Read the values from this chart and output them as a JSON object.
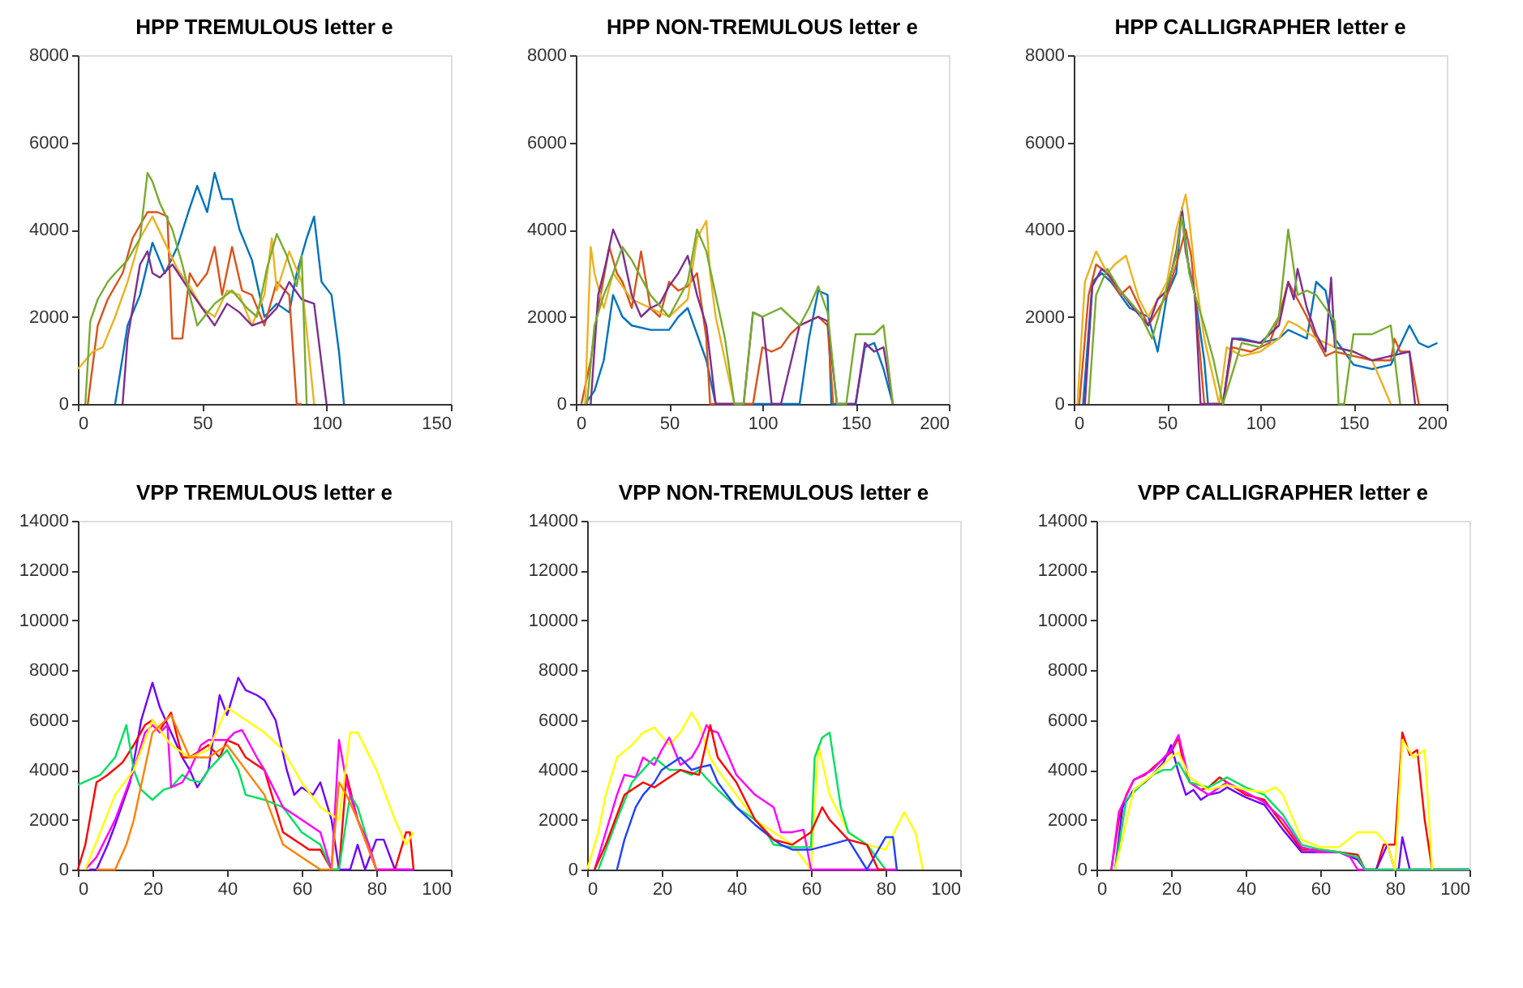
{
  "chart_data": [
    {
      "type": "line",
      "title": "HPP TREMULOUS letter e",
      "xlim": [
        0,
        150
      ],
      "xticks": [
        0,
        50,
        100,
        150
      ],
      "ylim": [
        0,
        8000
      ],
      "yticks": [
        0,
        2000,
        4000,
        6000,
        8000
      ],
      "grid": false,
      "legend": false,
      "line_style": "solid",
      "marker": "none",
      "series": [
        {
          "color": "#0072bd",
          "x": [
            15,
            20,
            25,
            30,
            35,
            40,
            45,
            48,
            52,
            55,
            58,
            62,
            65,
            70,
            75,
            80,
            85,
            88,
            92,
            95,
            98,
            102,
            105,
            107
          ],
          "values": [
            0,
            1800,
            2500,
            3700,
            3000,
            3600,
            4500,
            5000,
            4400,
            5300,
            4700,
            4700,
            4000,
            3300,
            2000,
            2300,
            2100,
            3000,
            3800,
            4300,
            2800,
            2500,
            1200,
            0
          ]
        },
        {
          "color": "#d95319",
          "x": [
            4,
            8,
            12,
            18,
            22,
            28,
            32,
            36,
            38,
            42,
            45,
            48,
            52,
            55,
            58,
            62,
            66,
            70,
            75,
            80,
            85,
            88,
            90
          ],
          "values": [
            0,
            1800,
            2400,
            3000,
            3800,
            4400,
            4400,
            4300,
            1500,
            1500,
            3000,
            2700,
            3000,
            3600,
            2500,
            3600,
            2600,
            2500,
            1800,
            2800,
            2500,
            0,
            0
          ]
        },
        {
          "color": "#edb120",
          "x": [
            0,
            3,
            6,
            10,
            15,
            20,
            25,
            30,
            35,
            40,
            45,
            50,
            55,
            60,
            65,
            70,
            75,
            78,
            80,
            85,
            90,
            95
          ],
          "values": [
            800,
            1000,
            1200,
            1300,
            2000,
            2800,
            3800,
            4300,
            3700,
            3100,
            2700,
            2200,
            2000,
            2600,
            2500,
            1800,
            2500,
            3800,
            2600,
            3500,
            2800,
            0
          ]
        },
        {
          "color": "#7e2f8e",
          "x": [
            18,
            20,
            25,
            28,
            30,
            33,
            38,
            45,
            50,
            55,
            60,
            65,
            70,
            75,
            80,
            85,
            90,
            95,
            100
          ],
          "values": [
            0,
            1500,
            3200,
            3500,
            3000,
            2900,
            3200,
            2600,
            2200,
            1800,
            2300,
            2100,
            1800,
            1900,
            2200,
            2800,
            2400,
            2300,
            0
          ]
        },
        {
          "color": "#77ac30",
          "x": [
            3,
            5,
            8,
            12,
            15,
            20,
            25,
            28,
            30,
            33,
            38,
            42,
            48,
            55,
            62,
            68,
            72,
            76,
            80,
            84,
            88,
            90,
            92
          ],
          "values": [
            0,
            1900,
            2400,
            2800,
            3000,
            3300,
            3800,
            5300,
            5100,
            4600,
            4000,
            3200,
            1800,
            2300,
            2600,
            2200,
            2000,
            3100,
            3900,
            3400,
            2700,
            3400,
            0
          ]
        }
      ]
    },
    {
      "type": "line",
      "title": "HPP NON-TREMULOUS letter e",
      "xlim": [
        0,
        200
      ],
      "xticks": [
        0,
        50,
        100,
        150,
        200
      ],
      "ylim": [
        0,
        8000
      ],
      "yticks": [
        0,
        2000,
        4000,
        6000,
        8000
      ],
      "grid": false,
      "legend": false,
      "line_style": "solid",
      "marker": "none",
      "series": [
        {
          "color": "#0072bd",
          "x": [
            5,
            10,
            15,
            20,
            25,
            30,
            40,
            50,
            55,
            60,
            70,
            75,
            120,
            125,
            130,
            135,
            137,
            150,
            155,
            160,
            165,
            170
          ],
          "values": [
            0,
            300,
            1000,
            2500,
            2000,
            1800,
            1700,
            1700,
            2000,
            2200,
            1000,
            0,
            0,
            1500,
            2600,
            2500,
            0,
            0,
            1300,
            1400,
            800,
            0
          ]
        },
        {
          "color": "#d95319",
          "x": [
            3,
            8,
            12,
            18,
            22,
            25,
            30,
            35,
            40,
            45,
            50,
            55,
            60,
            65,
            70,
            72,
            95,
            100,
            105,
            110,
            115,
            120,
            125,
            130,
            135,
            138
          ],
          "values": [
            0,
            1000,
            2200,
            3600,
            3000,
            2800,
            2200,
            3500,
            2200,
            2000,
            2800,
            2600,
            2700,
            3000,
            1500,
            0,
            0,
            1300,
            1200,
            1300,
            1600,
            1800,
            1900,
            2000,
            1800,
            0
          ]
        },
        {
          "color": "#edb120",
          "x": [
            5,
            8,
            10,
            15,
            20,
            25,
            30,
            40,
            50,
            60,
            65,
            70,
            72,
            75,
            80,
            85
          ],
          "values": [
            0,
            3600,
            3000,
            2200,
            3000,
            2700,
            2400,
            2200,
            2000,
            2400,
            3800,
            4200,
            3000,
            2000,
            1000,
            0
          ]
        },
        {
          "color": "#7e2f8e",
          "x": [
            8,
            12,
            16,
            20,
            25,
            30,
            35,
            40,
            45,
            50,
            55,
            60,
            65,
            70,
            75,
            90,
            95,
            100,
            105,
            110,
            120,
            130,
            135,
            140,
            150,
            155,
            160,
            165,
            170
          ],
          "values": [
            0,
            2500,
            3200,
            4000,
            3500,
            2500,
            2000,
            2200,
            2300,
            2700,
            3000,
            3400,
            2500,
            1800,
            0,
            0,
            2100,
            2000,
            0,
            0,
            1800,
            2000,
            1900,
            0,
            0,
            1400,
            1200,
            1300,
            0
          ]
        },
        {
          "color": "#77ac30",
          "x": [
            6,
            10,
            15,
            20,
            25,
            30,
            40,
            50,
            60,
            65,
            70,
            75,
            80,
            85,
            90,
            95,
            100,
            110,
            120,
            125,
            130,
            135,
            140,
            145,
            150,
            160,
            165,
            170
          ],
          "values": [
            0,
            1800,
            2500,
            3000,
            3600,
            3300,
            2500,
            2000,
            2800,
            4000,
            3500,
            2500,
            1500,
            0,
            0,
            2100,
            2000,
            2200,
            1800,
            2200,
            2700,
            2100,
            0,
            0,
            1600,
            1600,
            1800,
            0
          ]
        }
      ]
    },
    {
      "type": "line",
      "title": "HPP CALLIGRAPHER letter e",
      "xlim": [
        0,
        200
      ],
      "xticks": [
        0,
        50,
        100,
        150,
        200
      ],
      "ylim": [
        0,
        8000
      ],
      "yticks": [
        0,
        2000,
        4000,
        6000,
        8000
      ],
      "grid": false,
      "legend": false,
      "line_style": "solid",
      "marker": "none",
      "series": [
        {
          "color": "#0072bd",
          "x": [
            5,
            10,
            15,
            20,
            30,
            40,
            45,
            50,
            55,
            58,
            62,
            65,
            70,
            72,
            80,
            85,
            90,
            100,
            110,
            115,
            120,
            125,
            130,
            135,
            140,
            150,
            160,
            170,
            180,
            185,
            190,
            195
          ],
          "values": [
            0,
            2800,
            3000,
            2800,
            2200,
            2000,
            1200,
            2500,
            3000,
            4500,
            3000,
            2500,
            1000,
            0,
            0,
            1500,
            1500,
            1400,
            1500,
            1700,
            1600,
            1500,
            2800,
            2600,
            1500,
            900,
            800,
            900,
            1800,
            1400,
            1300,
            1400
          ]
        },
        {
          "color": "#d95319",
          "x": [
            3,
            8,
            12,
            18,
            25,
            30,
            40,
            50,
            55,
            60,
            63,
            68,
            70,
            80,
            85,
            95,
            105,
            110,
            115,
            120,
            125,
            130,
            135,
            140,
            150,
            160,
            170,
            172,
            175,
            180,
            185
          ],
          "values": [
            0,
            2500,
            3200,
            3000,
            2500,
            2700,
            1800,
            2500,
            3200,
            4000,
            3400,
            1000,
            0,
            0,
            1300,
            1200,
            1400,
            2000,
            2800,
            2400,
            2000,
            1500,
            1100,
            1200,
            1100,
            1000,
            1000,
            1500,
            1200,
            1200,
            0
          ]
        },
        {
          "color": "#edb120",
          "x": [
            2,
            6,
            12,
            18,
            22,
            28,
            35,
            40,
            50,
            55,
            60,
            62,
            65,
            70,
            78,
            82,
            90,
            100,
            110,
            115,
            120,
            130,
            140,
            150,
            160,
            170
          ],
          "values": [
            0,
            2800,
            3500,
            3000,
            3200,
            3400,
            2400,
            2000,
            2800,
            4000,
            4800,
            4200,
            3000,
            1500,
            0,
            1300,
            1100,
            1200,
            1500,
            1900,
            1800,
            1500,
            1300,
            1200,
            1000,
            0
          ]
        },
        {
          "color": "#7e2f8e",
          "x": [
            6,
            10,
            15,
            20,
            30,
            40,
            45,
            50,
            55,
            58,
            60,
            65,
            68,
            80,
            85,
            100,
            110,
            115,
            118,
            120,
            125,
            130,
            135,
            138,
            140,
            150,
            160,
            170,
            180,
            183
          ],
          "values": [
            0,
            2700,
            3100,
            2900,
            2300,
            1800,
            2400,
            2600,
            3500,
            4400,
            3500,
            2500,
            0,
            0,
            1500,
            1400,
            1800,
            2800,
            2400,
            3100,
            2200,
            1600,
            1200,
            2900,
            1300,
            1200,
            1000,
            1100,
            1200,
            0
          ]
        },
        {
          "color": "#77ac30",
          "x": [
            8,
            12,
            18,
            25,
            35,
            42,
            50,
            55,
            58,
            62,
            65,
            70,
            75,
            80,
            90,
            100,
            110,
            115,
            120,
            125,
            130,
            140,
            142,
            145,
            150,
            160,
            170,
            175
          ],
          "values": [
            0,
            2500,
            3100,
            2600,
            2100,
            1500,
            2700,
            3400,
            4300,
            3000,
            2500,
            1800,
            1000,
            0,
            1400,
            1300,
            2000,
            4000,
            2500,
            2600,
            2500,
            1900,
            0,
            0,
            1600,
            1600,
            1800,
            0
          ]
        }
      ]
    },
    {
      "type": "line",
      "title": "VPP TREMULOUS letter e",
      "xlim": [
        0,
        100
      ],
      "xticks": [
        0,
        20,
        40,
        60,
        80,
        100
      ],
      "ylim": [
        0,
        14000
      ],
      "yticks": [
        0,
        2000,
        4000,
        6000,
        8000,
        10000,
        12000,
        14000
      ],
      "grid": false,
      "legend": false,
      "line_style": "solid",
      "marker": "none",
      "series": [
        {
          "color": "#7000ff",
          "x": [
            3,
            5,
            8,
            10,
            14,
            17,
            20,
            22,
            25,
            28,
            30,
            32,
            35,
            38,
            40,
            43,
            45,
            48,
            50,
            53,
            56,
            58,
            60,
            63,
            65,
            68,
            70,
            73,
            75,
            77,
            80,
            82,
            85,
            90
          ],
          "values": [
            0,
            0,
            1000,
            1800,
            3500,
            6000,
            7500,
            6500,
            5500,
            4500,
            4000,
            3300,
            4000,
            7000,
            6200,
            7700,
            7200,
            7000,
            6800,
            6000,
            4000,
            3000,
            3300,
            3000,
            3500,
            2000,
            0,
            0,
            1000,
            0,
            1200,
            1200,
            0,
            0
          ]
        },
        {
          "color": "#ff0000",
          "x": [
            0,
            2,
            5,
            8,
            12,
            15,
            18,
            20,
            22,
            25,
            28,
            30,
            35,
            38,
            40,
            43,
            45,
            50,
            52,
            55,
            58,
            60,
            62,
            65,
            68,
            70,
            72,
            75,
            80,
            85,
            88,
            89,
            90
          ],
          "values": [
            0,
            1000,
            3500,
            3800,
            4300,
            5000,
            5800,
            6000,
            5600,
            6300,
            4500,
            4500,
            5000,
            4500,
            5200,
            5000,
            4500,
            4000,
            3000,
            1500,
            1200,
            1000,
            800,
            800,
            0,
            0,
            3800,
            2000,
            0,
            0,
            1500,
            1500,
            0
          ]
        },
        {
          "color": "#00e060",
          "x": [
            0,
            3,
            6,
            10,
            13,
            15,
            17,
            20,
            23,
            25,
            28,
            30,
            33,
            35,
            40,
            43,
            45,
            50,
            55,
            60,
            65,
            68,
            70,
            73,
            75,
            78,
            80
          ],
          "values": [
            3400,
            3600,
            3800,
            4500,
            5800,
            4000,
            3200,
            2800,
            3200,
            3300,
            3800,
            3600,
            3500,
            4000,
            4800,
            4000,
            3000,
            2800,
            2500,
            1500,
            1000,
            0,
            0,
            3000,
            2500,
            1000,
            0
          ]
        },
        {
          "color": "#ff00ff",
          "x": [
            2,
            5,
            10,
            15,
            18,
            20,
            22,
            24,
            25,
            28,
            30,
            33,
            35,
            40,
            42,
            44,
            48,
            50,
            55,
            60,
            65,
            68,
            70,
            72,
            75,
            78,
            80,
            85,
            90
          ],
          "values": [
            0,
            500,
            2000,
            4000,
            5500,
            5800,
            5500,
            5800,
            3300,
            3500,
            4000,
            5000,
            5200,
            5200,
            5500,
            5600,
            4500,
            4000,
            2500,
            2000,
            1500,
            0,
            5200,
            3500,
            2000,
            1000,
            0,
            0,
            0
          ]
        },
        {
          "color": "#ffff00",
          "x": [
            2,
            10,
            15,
            20,
            25,
            30,
            35,
            40,
            45,
            50,
            55,
            60,
            65,
            70,
            73,
            75,
            80,
            85,
            88,
            90
          ],
          "values": [
            0,
            3000,
            4000,
            6000,
            5000,
            4500,
            4800,
            6500,
            6000,
            5500,
            4800,
            3500,
            2500,
            2000,
            5500,
            5500,
            4000,
            2000,
            1000,
            1500
          ]
        },
        {
          "color": "#ff8000",
          "x": [
            5,
            10,
            13,
            15,
            20,
            25,
            30,
            35,
            40,
            45,
            50,
            55,
            60,
            65,
            68,
            70,
            72,
            75,
            80
          ],
          "values": [
            0,
            0,
            1000,
            2000,
            5500,
            6200,
            4500,
            4500,
            5000,
            4000,
            3000,
            1000,
            500,
            0,
            0,
            3500,
            3000,
            2000,
            0
          ]
        }
      ]
    },
    {
      "type": "line",
      "title": "VPP NON-TREMULOUS letter e",
      "xlim": [
        0,
        100
      ],
      "xticks": [
        0,
        20,
        40,
        60,
        80,
        100
      ],
      "ylim": [
        0,
        14000
      ],
      "yticks": [
        0,
        2000,
        4000,
        6000,
        8000,
        10000,
        12000,
        14000
      ],
      "grid": false,
      "legend": false,
      "line_style": "solid",
      "marker": "none",
      "series": [
        {
          "color": "#ffff00",
          "x": [
            0,
            3,
            5,
            8,
            12,
            15,
            18,
            22,
            25,
            28,
            30,
            33,
            35,
            40,
            45,
            50,
            55,
            60,
            62,
            65,
            70,
            75,
            80,
            85,
            88,
            90
          ],
          "values": [
            0,
            1500,
            3000,
            4500,
            5000,
            5500,
            5700,
            5000,
            5500,
            6300,
            5800,
            4500,
            4000,
            3000,
            2000,
            1500,
            1000,
            0,
            5000,
            3000,
            1500,
            1000,
            800,
            2300,
            1500,
            0
          ]
        },
        {
          "color": "#ff00ff",
          "x": [
            2,
            5,
            8,
            10,
            13,
            15,
            18,
            20,
            22,
            25,
            28,
            30,
            32,
            33,
            35,
            38,
            40,
            45,
            50,
            52,
            55,
            58,
            60,
            65,
            70,
            75,
            80,
            83
          ],
          "values": [
            0,
            1500,
            3000,
            3800,
            3700,
            4500,
            4200,
            4800,
            5300,
            4200,
            4500,
            5000,
            5800,
            5600,
            5500,
            4500,
            3800,
            3000,
            2500,
            1500,
            1500,
            1600,
            0,
            0,
            0,
            0,
            0,
            0
          ]
        },
        {
          "color": "#00e060",
          "x": [
            3,
            8,
            12,
            15,
            18,
            22,
            25,
            28,
            30,
            33,
            35,
            40,
            45,
            48,
            50,
            55,
            60,
            61,
            63,
            65,
            68,
            70,
            75,
            80
          ],
          "values": [
            0,
            2000,
            3500,
            4000,
            4500,
            4000,
            4000,
            3800,
            4000,
            3500,
            3200,
            2500,
            2000,
            1500,
            1000,
            900,
            900,
            4500,
            5300,
            5500,
            2500,
            1500,
            1000,
            0
          ]
        },
        {
          "color": "#2040ff",
          "x": [
            8,
            10,
            13,
            15,
            18,
            20,
            22,
            25,
            28,
            30,
            33,
            35,
            40,
            45,
            50,
            52,
            55,
            60,
            65,
            70,
            75,
            80,
            82,
            83
          ],
          "values": [
            0,
            1200,
            2500,
            3000,
            3500,
            4000,
            4200,
            4500,
            4000,
            4100,
            4200,
            3500,
            2500,
            1800,
            1200,
            1000,
            800,
            800,
            1000,
            1200,
            0,
            1300,
            1300,
            0
          ]
        },
        {
          "color": "#ff0000",
          "x": [
            2,
            5,
            10,
            15,
            18,
            20,
            25,
            30,
            33,
            35,
            40,
            45,
            50,
            55,
            60,
            63,
            65,
            70,
            75,
            78,
            80
          ],
          "values": [
            0,
            1000,
            3000,
            3500,
            3300,
            3500,
            4000,
            3800,
            5800,
            4500,
            3500,
            2000,
            1200,
            1000,
            1500,
            2500,
            2000,
            1200,
            1000,
            0,
            0
          ]
        }
      ]
    },
    {
      "type": "line",
      "title": "VPP CALLIGRAPHER letter e",
      "xlim": [
        0,
        100
      ],
      "xticks": [
        0,
        20,
        40,
        60,
        80,
        100
      ],
      "ylim": [
        0,
        14000
      ],
      "yticks": [
        0,
        2000,
        4000,
        6000,
        8000,
        10000,
        12000,
        14000
      ],
      "grid": false,
      "legend": false,
      "line_style": "solid",
      "marker": "none",
      "series": [
        {
          "color": "#ff0000",
          "x": [
            4,
            6,
            8,
            10,
            13,
            16,
            20,
            22,
            23,
            25,
            28,
            30,
            33,
            35,
            40,
            45,
            50,
            55,
            60,
            65,
            70,
            72,
            75,
            77,
            80,
            82,
            84,
            86,
            88,
            90,
            95,
            100
          ],
          "values": [
            0,
            2000,
            3000,
            3600,
            3800,
            4200,
            4700,
            5300,
            4500,
            3500,
            3200,
            3300,
            3700,
            3500,
            3000,
            2800,
            1800,
            800,
            800,
            700,
            600,
            0,
            0,
            1000,
            1000,
            5500,
            4600,
            4800,
            2000,
            0,
            0,
            0
          ]
        },
        {
          "color": "#7000ff",
          "x": [
            5,
            7,
            10,
            13,
            15,
            18,
            20,
            22,
            24,
            26,
            28,
            30,
            33,
            35,
            40,
            45,
            50,
            55,
            60,
            65,
            70,
            72,
            75,
            78,
            80,
            81,
            82,
            84,
            100
          ],
          "values": [
            0,
            2500,
            3200,
            3500,
            3800,
            4300,
            5000,
            3900,
            3000,
            3200,
            2800,
            3000,
            3100,
            3300,
            2900,
            2600,
            1600,
            700,
            700,
            700,
            400,
            0,
            0,
            1000,
            0,
            0,
            1300,
            0,
            0
          ]
        },
        {
          "color": "#ff00ff",
          "x": [
            4,
            6,
            10,
            15,
            20,
            22,
            25,
            30,
            35,
            40,
            45,
            50,
            55,
            60,
            65,
            68,
            70,
            100
          ],
          "values": [
            0,
            2300,
            3600,
            4000,
            4800,
            5400,
            3500,
            3000,
            3500,
            3100,
            2700,
            2000,
            900,
            700,
            700,
            500,
            0,
            0
          ]
        },
        {
          "color": "#00e060",
          "x": [
            5,
            8,
            12,
            15,
            18,
            20,
            22,
            25,
            30,
            35,
            40,
            45,
            50,
            55,
            60,
            65,
            70,
            72,
            100
          ],
          "values": [
            0,
            2800,
            3400,
            3800,
            4000,
            4000,
            4300,
            3500,
            3300,
            3700,
            3300,
            3000,
            2200,
            1000,
            800,
            700,
            500,
            0,
            0
          ]
        },
        {
          "color": "#ffff00",
          "x": [
            5,
            10,
            15,
            20,
            22,
            25,
            30,
            35,
            40,
            45,
            48,
            50,
            55,
            60,
            65,
            70,
            75,
            78,
            80,
            82,
            85,
            88,
            90
          ],
          "values": [
            0,
            3200,
            3800,
            4500,
            4700,
            3700,
            3200,
            3400,
            3200,
            3100,
            3300,
            3000,
            1200,
            900,
            900,
            1500,
            1500,
            1000,
            0,
            5200,
            4500,
            4800,
            0
          ]
        }
      ]
    }
  ]
}
